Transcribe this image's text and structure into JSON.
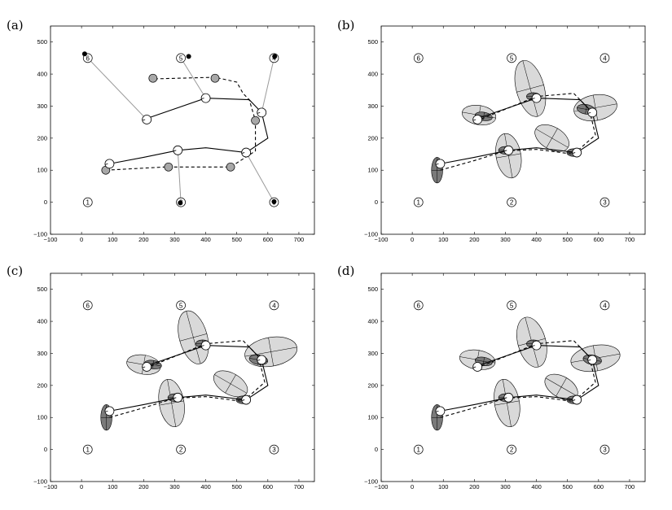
{
  "chart_data": [
    {
      "type": "scatter",
      "panel_label": "(a)",
      "xlim": [
        -100,
        750
      ],
      "ylim": [
        -100,
        550
      ],
      "xticks": [
        -100,
        0,
        100,
        200,
        300,
        400,
        500,
        600,
        700
      ],
      "yticks": [
        -100,
        0,
        100,
        200,
        300,
        400,
        500
      ],
      "grid": false,
      "landmarks": [
        {
          "id": "1",
          "x": 20,
          "y": 0
        },
        {
          "id": "2",
          "x": 320,
          "y": 0
        },
        {
          "id": "3",
          "x": 620,
          "y": 0
        },
        {
          "id": "4",
          "x": 620,
          "y": 450
        },
        {
          "id": "5",
          "x": 320,
          "y": 450
        },
        {
          "id": "6",
          "x": 20,
          "y": 450
        }
      ],
      "series": [
        {
          "style": "solid",
          "values": [
            [
              90,
              120
            ],
            [
              200,
              140
            ],
            [
              310,
              162
            ],
            [
              400,
              170
            ],
            [
              530,
              155
            ],
            [
              600,
              200
            ],
            [
              580,
              280
            ],
            [
              540,
              320
            ],
            [
              400,
              325
            ],
            [
              200,
              258
            ]
          ]
        },
        {
          "style": "dashed",
          "values": [
            [
              78,
              100
            ],
            [
              270,
              110
            ],
            [
              480,
              110
            ],
            [
              560,
              160
            ],
            [
              560,
              255
            ],
            [
              540,
              320
            ],
            [
              520,
              340
            ],
            [
              500,
              375
            ],
            [
              430,
              390
            ],
            [
              230,
              385
            ]
          ]
        }
      ],
      "true_poses": [
        [
          90,
          120
        ],
        [
          310,
          162
        ],
        [
          530,
          155
        ],
        [
          580,
          280
        ],
        [
          400,
          325
        ],
        [
          210,
          258
        ]
      ],
      "estimated_poses": [
        [
          78,
          100
        ],
        [
          280,
          110
        ],
        [
          480,
          110
        ],
        [
          560,
          255
        ],
        [
          430,
          387
        ],
        [
          230,
          387
        ]
      ],
      "observed_landmark_estimates": [
        {
          "id": "1",
          "x": 10,
          "y": 463
        },
        {
          "id": "2",
          "x": 318,
          "y": -2
        },
        {
          "id": "3",
          "x": 620,
          "y": 2
        },
        {
          "id": "4",
          "x": 622,
          "y": 455
        },
        {
          "id": "5",
          "x": 345,
          "y": 455
        }
      ],
      "observation_links": [
        [
          [
            210,
            258
          ],
          [
            20,
            450
          ]
        ],
        [
          [
            400,
            325
          ],
          [
            320,
            450
          ]
        ],
        [
          [
            580,
            280
          ],
          [
            620,
            450
          ]
        ],
        [
          [
            310,
            162
          ],
          [
            320,
            0
          ]
        ],
        [
          [
            530,
            155
          ],
          [
            620,
            0
          ]
        ]
      ]
    },
    {
      "type": "scatter",
      "panel_label": "(b)",
      "xlim": [
        -100,
        750
      ],
      "ylim": [
        -100,
        550
      ],
      "xticks": [
        -100,
        0,
        100,
        200,
        300,
        400,
        500,
        600,
        700
      ],
      "yticks": [
        -100,
        0,
        100,
        200,
        300,
        400,
        500
      ],
      "grid": false,
      "landmarks": [
        {
          "id": "1",
          "x": 20,
          "y": 0
        },
        {
          "id": "2",
          "x": 320,
          "y": 0
        },
        {
          "id": "3",
          "x": 620,
          "y": 0
        },
        {
          "id": "4",
          "x": 620,
          "y": 450
        },
        {
          "id": "5",
          "x": 320,
          "y": 450
        },
        {
          "id": "6",
          "x": 20,
          "y": 450
        }
      ],
      "series": [
        {
          "style": "solid",
          "values": [
            [
              90,
              120
            ],
            [
              200,
              140
            ],
            [
              310,
              162
            ],
            [
              400,
              170
            ],
            [
              530,
              155
            ],
            [
              600,
              200
            ],
            [
              580,
              280
            ],
            [
              540,
              320
            ],
            [
              400,
              325
            ],
            [
              200,
              258
            ]
          ]
        },
        {
          "style": "dashed",
          "values": [
            [
              90,
              100
            ],
            [
              200,
              130
            ],
            [
              300,
              160
            ],
            [
              400,
              165
            ],
            [
              520,
              150
            ],
            [
              590,
              210
            ],
            [
              570,
              290
            ],
            [
              520,
              340
            ],
            [
              400,
              330
            ],
            [
              210,
              255
            ]
          ]
        }
      ],
      "poses": [
        [
          90,
          120
        ],
        [
          310,
          162
        ],
        [
          530,
          155
        ],
        [
          580,
          280
        ],
        [
          400,
          325
        ],
        [
          210,
          258
        ]
      ],
      "light_ellipses": [
        {
          "cx": 310,
          "cy": 145,
          "rx": 40,
          "ry": 70,
          "angle": 10
        },
        {
          "cx": 450,
          "cy": 200,
          "rx": 60,
          "ry": 35,
          "angle": -30
        },
        {
          "cx": 590,
          "cy": 295,
          "rx": 70,
          "ry": 40,
          "angle": 10
        },
        {
          "cx": 380,
          "cy": 355,
          "rx": 45,
          "ry": 90,
          "angle": 15
        },
        {
          "cx": 215,
          "cy": 272,
          "rx": 55,
          "ry": 30,
          "angle": -10
        }
      ],
      "dark_ellipses": [
        {
          "cx": 80,
          "cy": 100,
          "rx": 18,
          "ry": 40,
          "angle": 0
        },
        {
          "cx": 300,
          "cy": 162,
          "rx": 22,
          "ry": 12,
          "angle": 0
        },
        {
          "cx": 520,
          "cy": 155,
          "rx": 22,
          "ry": 12,
          "angle": 0
        },
        {
          "cx": 560,
          "cy": 290,
          "rx": 30,
          "ry": 15,
          "angle": -10
        },
        {
          "cx": 390,
          "cy": 330,
          "rx": 22,
          "ry": 12,
          "angle": 0
        },
        {
          "cx": 230,
          "cy": 268,
          "rx": 28,
          "ry": 13,
          "angle": -10
        }
      ]
    },
    {
      "type": "scatter",
      "panel_label": "(c)",
      "xlim": [
        -100,
        750
      ],
      "ylim": [
        -100,
        550
      ],
      "xticks": [
        -100,
        0,
        100,
        200,
        300,
        400,
        500,
        600,
        700
      ],
      "yticks": [
        -100,
        0,
        100,
        200,
        300,
        400,
        500
      ],
      "grid": false,
      "landmarks": [
        {
          "id": "1",
          "x": 20,
          "y": 0
        },
        {
          "id": "2",
          "x": 320,
          "y": 0
        },
        {
          "id": "3",
          "x": 620,
          "y": 0
        },
        {
          "id": "4",
          "x": 620,
          "y": 450
        },
        {
          "id": "5",
          "x": 320,
          "y": 450
        },
        {
          "id": "6",
          "x": 20,
          "y": 450
        }
      ],
      "series": [
        {
          "style": "solid",
          "values": [
            [
              90,
              120
            ],
            [
              200,
              140
            ],
            [
              310,
              162
            ],
            [
              400,
              170
            ],
            [
              530,
              155
            ],
            [
              600,
              200
            ],
            [
              580,
              280
            ],
            [
              540,
              320
            ],
            [
              400,
              325
            ],
            [
              200,
              258
            ]
          ]
        },
        {
          "style": "dashed",
          "values": [
            [
              90,
              100
            ],
            [
              200,
              130
            ],
            [
              300,
              160
            ],
            [
              400,
              165
            ],
            [
              520,
              150
            ],
            [
              590,
              210
            ],
            [
              570,
              290
            ],
            [
              520,
              340
            ],
            [
              400,
              330
            ],
            [
              210,
              255
            ]
          ]
        }
      ],
      "poses": [
        [
          90,
          120
        ],
        [
          310,
          162
        ],
        [
          530,
          155
        ],
        [
          580,
          280
        ],
        [
          400,
          325
        ],
        [
          210,
          258
        ]
      ],
      "light_ellipses": [
        {
          "cx": 290,
          "cy": 145,
          "rx": 40,
          "ry": 75,
          "angle": 10
        },
        {
          "cx": 480,
          "cy": 205,
          "rx": 60,
          "ry": 33,
          "angle": -30
        },
        {
          "cx": 610,
          "cy": 305,
          "rx": 85,
          "ry": 45,
          "angle": 10
        },
        {
          "cx": 360,
          "cy": 350,
          "rx": 45,
          "ry": 85,
          "angle": 15
        },
        {
          "cx": 200,
          "cy": 265,
          "rx": 55,
          "ry": 30,
          "angle": -10
        }
      ],
      "dark_ellipses": [
        {
          "cx": 80,
          "cy": 100,
          "rx": 18,
          "ry": 40,
          "angle": 0
        },
        {
          "cx": 300,
          "cy": 162,
          "rx": 22,
          "ry": 12,
          "angle": 0
        },
        {
          "cx": 520,
          "cy": 155,
          "rx": 22,
          "ry": 12,
          "angle": 0
        },
        {
          "cx": 570,
          "cy": 280,
          "rx": 30,
          "ry": 15,
          "angle": -10
        },
        {
          "cx": 390,
          "cy": 330,
          "rx": 22,
          "ry": 12,
          "angle": 0
        },
        {
          "cx": 230,
          "cy": 265,
          "rx": 28,
          "ry": 13,
          "angle": -10
        }
      ]
    },
    {
      "type": "scatter",
      "panel_label": "(d)",
      "xlim": [
        -100,
        750
      ],
      "ylim": [
        -100,
        550
      ],
      "xticks": [
        -100,
        0,
        100,
        200,
        300,
        400,
        500,
        600,
        700
      ],
      "yticks": [
        -100,
        0,
        100,
        200,
        300,
        400,
        500
      ],
      "grid": false,
      "landmarks": [
        {
          "id": "1",
          "x": 20,
          "y": 0
        },
        {
          "id": "2",
          "x": 320,
          "y": 0
        },
        {
          "id": "3",
          "x": 620,
          "y": 0
        },
        {
          "id": "4",
          "x": 620,
          "y": 450
        },
        {
          "id": "5",
          "x": 320,
          "y": 450
        },
        {
          "id": "6",
          "x": 20,
          "y": 450
        }
      ],
      "series": [
        {
          "style": "solid",
          "values": [
            [
              90,
              120
            ],
            [
              200,
              140
            ],
            [
              310,
              162
            ],
            [
              400,
              170
            ],
            [
              530,
              155
            ],
            [
              600,
              200
            ],
            [
              580,
              280
            ],
            [
              540,
              320
            ],
            [
              400,
              325
            ],
            [
              200,
              258
            ]
          ]
        },
        {
          "style": "dashed",
          "values": [
            [
              90,
              100
            ],
            [
              200,
              130
            ],
            [
              300,
              160
            ],
            [
              400,
              165
            ],
            [
              520,
              150
            ],
            [
              590,
              210
            ],
            [
              570,
              290
            ],
            [
              520,
              340
            ],
            [
              400,
              330
            ],
            [
              210,
              255
            ]
          ]
        }
      ],
      "poses": [
        [
          90,
          120
        ],
        [
          310,
          162
        ],
        [
          530,
          155
        ],
        [
          580,
          280
        ],
        [
          400,
          325
        ],
        [
          210,
          258
        ]
      ],
      "light_ellipses": [
        {
          "cx": 305,
          "cy": 145,
          "rx": 40,
          "ry": 75,
          "angle": 10
        },
        {
          "cx": 480,
          "cy": 195,
          "rx": 58,
          "ry": 33,
          "angle": -30
        },
        {
          "cx": 590,
          "cy": 285,
          "rx": 80,
          "ry": 40,
          "angle": 10
        },
        {
          "cx": 385,
          "cy": 335,
          "rx": 45,
          "ry": 80,
          "angle": 15
        },
        {
          "cx": 210,
          "cy": 280,
          "rx": 58,
          "ry": 30,
          "angle": -10
        }
      ],
      "dark_ellipses": [
        {
          "cx": 80,
          "cy": 100,
          "rx": 18,
          "ry": 40,
          "angle": 0
        },
        {
          "cx": 300,
          "cy": 162,
          "rx": 22,
          "ry": 12,
          "angle": 0
        },
        {
          "cx": 520,
          "cy": 155,
          "rx": 22,
          "ry": 12,
          "angle": 0
        },
        {
          "cx": 580,
          "cy": 280,
          "rx": 30,
          "ry": 15,
          "angle": -10
        },
        {
          "cx": 390,
          "cy": 330,
          "rx": 22,
          "ry": 12,
          "angle": 0
        },
        {
          "cx": 230,
          "cy": 275,
          "rx": 28,
          "ry": 13,
          "angle": -10
        }
      ]
    }
  ],
  "colors": {
    "axis": "#000000",
    "light_fill": "#d9d9d9",
    "dark_fill": "#7a7a7a",
    "observation_line": "#9a9a9a",
    "estimate_fill": "#a8a8a8"
  }
}
